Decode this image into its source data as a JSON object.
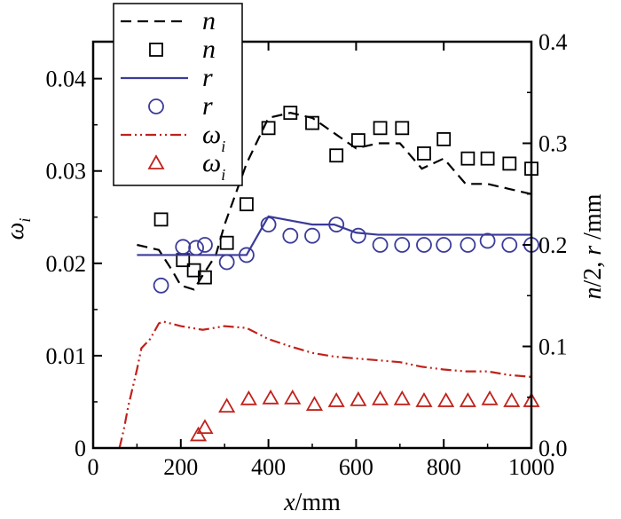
{
  "chart_data": {
    "type": "line",
    "title": "",
    "xlabel": "x/mm",
    "ylabel_left": "ω_i",
    "ylabel_right": "n/2, r /mm",
    "xlim": [
      0,
      1000
    ],
    "ylim_left": [
      0,
      0.044
    ],
    "ylim_right": [
      0,
      0.4
    ],
    "x_ticks": [
      0,
      200,
      400,
      600,
      800,
      1000
    ],
    "x_tick_labels": [
      "0",
      "200",
      "400",
      "600",
      "800",
      "1000"
    ],
    "y_left_ticks": [
      0,
      0.01,
      0.02,
      0.03,
      0.04
    ],
    "y_left_tick_labels": [
      "0",
      "0.01",
      "0.02",
      "0.03",
      "0.04"
    ],
    "y_right_ticks": [
      0,
      0.1,
      0.2,
      0.3,
      0.4
    ],
    "y_right_tick_labels": [
      "0.0",
      "0.1",
      "0.2",
      "0.3",
      "0.4"
    ],
    "grid": false,
    "legend_position": "top-left",
    "series": [
      {
        "name": "n",
        "legend_label": "n",
        "legend_subscript": "",
        "marker": "line",
        "style": "dashed",
        "color": "#000000",
        "axis": "right",
        "x": [
          100,
          150,
          180,
          200,
          230,
          250,
          280,
          300,
          350,
          400,
          450,
          500,
          550,
          600,
          650,
          700,
          750,
          800,
          850,
          900,
          950,
          1000
        ],
        "values": [
          0.2,
          0.195,
          0.175,
          0.16,
          0.156,
          0.17,
          0.19,
          0.22,
          0.28,
          0.325,
          0.33,
          0.325,
          0.31,
          0.295,
          0.3,
          0.3,
          0.275,
          0.285,
          0.26,
          0.26,
          0.255,
          0.25
        ]
      },
      {
        "name": "n (points)",
        "legend_label": "n",
        "legend_subscript": "",
        "marker": "square",
        "style": "none",
        "color": "#000000",
        "axis": "right",
        "x": [
          155,
          205,
          230,
          255,
          305,
          350,
          400,
          450,
          500,
          555,
          605,
          655,
          705,
          755,
          800,
          855,
          900,
          950,
          1000
        ],
        "values": [
          0.225,
          0.185,
          0.175,
          0.168,
          0.202,
          0.24,
          0.315,
          0.33,
          0.32,
          0.288,
          0.303,
          0.315,
          0.315,
          0.29,
          0.304,
          0.285,
          0.285,
          0.28,
          0.275
        ]
      },
      {
        "name": "r",
        "legend_label": "r",
        "legend_subscript": "",
        "marker": "line",
        "style": "solid",
        "color": "#3b3b9a",
        "axis": "right",
        "x": [
          100,
          150,
          200,
          250,
          300,
          350,
          400,
          450,
          500,
          550,
          600,
          650,
          700,
          750,
          800,
          850,
          900,
          950,
          1000
        ],
        "values": [
          0.19,
          0.19,
          0.19,
          0.19,
          0.19,
          0.19,
          0.228,
          0.224,
          0.22,
          0.22,
          0.212,
          0.21,
          0.21,
          0.21,
          0.21,
          0.21,
          0.21,
          0.21,
          0.21
        ]
      },
      {
        "name": "r (points)",
        "legend_label": "r",
        "legend_subscript": "",
        "marker": "circle",
        "style": "none",
        "color": "#3b3b9a",
        "axis": "right",
        "x": [
          155,
          205,
          235,
          255,
          305,
          350,
          400,
          450,
          500,
          555,
          605,
          655,
          705,
          755,
          800,
          855,
          900,
          950,
          1000
        ],
        "values": [
          0.16,
          0.198,
          0.197,
          0.2,
          0.183,
          0.19,
          0.22,
          0.209,
          0.209,
          0.22,
          0.209,
          0.2,
          0.2,
          0.2,
          0.2,
          0.2,
          0.204,
          0.2,
          0.2
        ]
      },
      {
        "name": "ω_i",
        "legend_label": "ω",
        "legend_subscript": "i",
        "marker": "line",
        "style": "dashdotdot",
        "color": "#c0221b",
        "axis": "left",
        "x": [
          60,
          70,
          80,
          90,
          100,
          110,
          130,
          150,
          160,
          200,
          250,
          300,
          350,
          400,
          450,
          500,
          550,
          600,
          650,
          700,
          750,
          800,
          850,
          900,
          950,
          1000
        ],
        "values": [
          0,
          0.002,
          0.0045,
          0.0065,
          0.0085,
          0.0108,
          0.0118,
          0.0135,
          0.0137,
          0.0132,
          0.0128,
          0.0132,
          0.013,
          0.0118,
          0.011,
          0.0103,
          0.0099,
          0.0097,
          0.0095,
          0.0093,
          0.0088,
          0.0085,
          0.0083,
          0.0083,
          0.0079,
          0.0077
        ]
      },
      {
        "name": "ω_i (points)",
        "legend_label": "ω",
        "legend_subscript": "i",
        "marker": "triangle",
        "style": "none",
        "color": "#c0221b",
        "axis": "left",
        "x": [
          240,
          255,
          305,
          355,
          405,
          455,
          505,
          555,
          605,
          655,
          705,
          755,
          805,
          855,
          905,
          955,
          1000
        ],
        "values": [
          0.0014,
          0.0022,
          0.0045,
          0.0053,
          0.0054,
          0.0054,
          0.0047,
          0.0051,
          0.0052,
          0.0053,
          0.0053,
          0.0051,
          0.0051,
          0.0051,
          0.0053,
          0.0051,
          0.0051
        ]
      }
    ]
  }
}
